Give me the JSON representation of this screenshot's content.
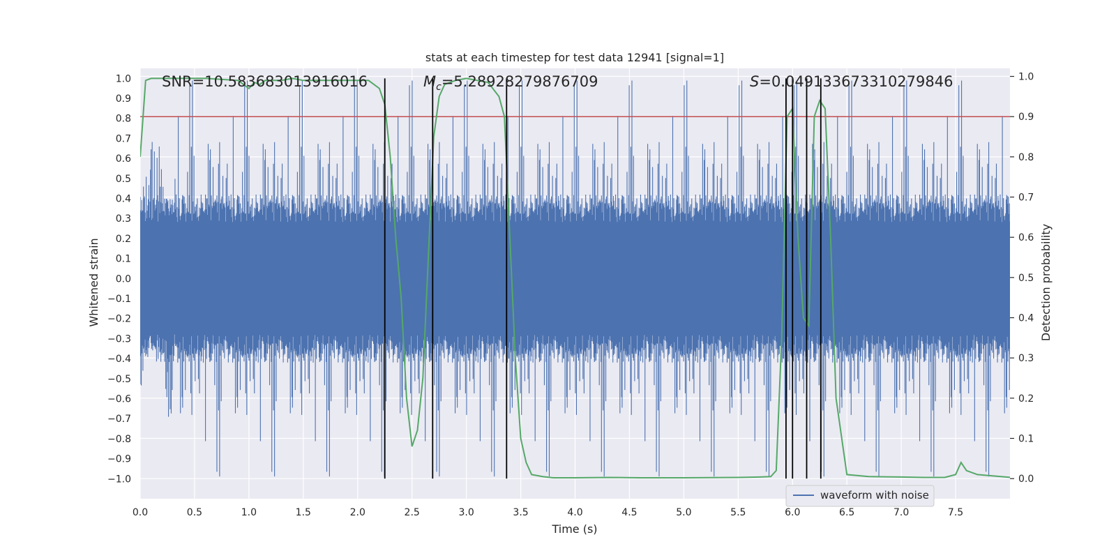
{
  "chart_data": {
    "type": "line",
    "title": "stats at each timestep for test data 12941 [signal=1]",
    "xlabel": "Time (s)",
    "ylabel_left": "Whitened strain",
    "ylabel_right": "Detection probability",
    "xlim": [
      0.0,
      8.0
    ],
    "ylim_left": [
      -1.1,
      1.05
    ],
    "ylim_right": [
      -0.05,
      1.02
    ],
    "grid": true,
    "legend_position": "lower-right",
    "x_ticks": [
      "0.0",
      "0.5",
      "1.0",
      "1.5",
      "2.0",
      "2.5",
      "3.0",
      "3.5",
      "4.0",
      "4.5",
      "5.0",
      "5.5",
      "6.0",
      "6.5",
      "7.0",
      "7.5"
    ],
    "x_tick_values": [
      0.0,
      0.5,
      1.0,
      1.5,
      2.0,
      2.5,
      3.0,
      3.5,
      4.0,
      4.5,
      5.0,
      5.5,
      6.0,
      6.5,
      7.0,
      7.5
    ],
    "y_left_ticks": [
      "1.0",
      "0.9",
      "0.8",
      "0.7",
      "0.6",
      "0.5",
      "0.4",
      "0.3",
      "0.2",
      "0.1",
      "0.0",
      "−0.1",
      "−0.2",
      "−0.3",
      "−0.4",
      "−0.5",
      "−0.6",
      "−0.7",
      "−0.8",
      "−0.9",
      "−1.0"
    ],
    "y_left_tick_values": [
      1.0,
      0.9,
      0.8,
      0.7,
      0.6,
      0.5,
      0.4,
      0.3,
      0.2,
      0.1,
      0.0,
      -0.1,
      -0.2,
      -0.3,
      -0.4,
      -0.5,
      -0.6,
      -0.7,
      -0.8,
      -0.9,
      -1.0
    ],
    "y_right_ticks": [
      "1.0",
      "0.9",
      "0.8",
      "0.7",
      "0.6",
      "0.5",
      "0.4",
      "0.3",
      "0.2",
      "0.1",
      "0.0"
    ],
    "y_right_tick_values": [
      1.0,
      0.9,
      0.8,
      0.7,
      0.6,
      0.5,
      0.4,
      0.3,
      0.2,
      0.1,
      0.0
    ],
    "annotations": {
      "snr": "SNR=10.583683013916016",
      "mc_symbol": "M",
      "mc_sub": "c",
      "mc_value": "=5.28928279876709",
      "s_symbol": "S",
      "s_value": "=0.049133673310279846"
    },
    "threshold": 0.9,
    "event_lines": [
      2.25,
      2.69,
      3.37,
      5.94,
      6.0,
      6.13,
      6.26
    ],
    "waveform": {
      "name": "waveform with noise",
      "color": "#4c72b0",
      "sample_count": 1600,
      "typical_abs_max": 0.4,
      "peak_max": 1.0,
      "peak_min": -1.0
    },
    "probability": {
      "color": "#55a868",
      "x": [
        0.0,
        0.05,
        0.1,
        0.15,
        0.3,
        0.6,
        0.9,
        0.95,
        1.0,
        1.05,
        1.1,
        1.15,
        1.2,
        1.3,
        1.4,
        1.5,
        1.7,
        1.9,
        2.0,
        2.1,
        2.15,
        2.2,
        2.25,
        2.3,
        2.35,
        2.4,
        2.45,
        2.5,
        2.55,
        2.6,
        2.65,
        2.7,
        2.75,
        2.8,
        2.9,
        3.0,
        3.1,
        3.2,
        3.3,
        3.35,
        3.4,
        3.45,
        3.5,
        3.55,
        3.6,
        3.7,
        3.8,
        4.0,
        4.3,
        4.6,
        5.0,
        5.5,
        5.7,
        5.8,
        5.85,
        5.9,
        5.95,
        6.0,
        6.05,
        6.1,
        6.15,
        6.2,
        6.25,
        6.3,
        6.35,
        6.4,
        6.5,
        6.7,
        7.0,
        7.2,
        7.4,
        7.5,
        7.55,
        7.6,
        7.7,
        8.0
      ],
      "y": [
        0.8,
        0.99,
        0.995,
        0.995,
        0.995,
        0.995,
        0.99,
        0.98,
        0.97,
        0.985,
        0.98,
        0.99,
        0.99,
        0.99,
        0.995,
        0.99,
        0.99,
        0.99,
        0.99,
        0.99,
        0.98,
        0.97,
        0.93,
        0.8,
        0.6,
        0.45,
        0.2,
        0.08,
        0.12,
        0.25,
        0.55,
        0.85,
        0.95,
        0.98,
        0.99,
        0.995,
        0.99,
        0.985,
        0.95,
        0.9,
        0.6,
        0.3,
        0.1,
        0.04,
        0.01,
        0.005,
        0.002,
        0.002,
        0.003,
        0.002,
        0.002,
        0.003,
        0.004,
        0.005,
        0.02,
        0.35,
        0.9,
        0.92,
        0.6,
        0.4,
        0.38,
        0.9,
        0.94,
        0.92,
        0.6,
        0.2,
        0.01,
        0.005,
        0.004,
        0.003,
        0.003,
        0.01,
        0.04,
        0.02,
        0.01,
        0.003
      ]
    }
  }
}
